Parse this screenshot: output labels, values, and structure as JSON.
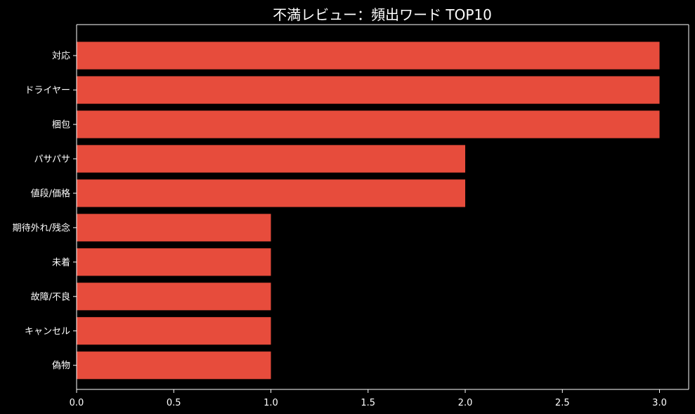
{
  "chart_data": {
    "type": "bar",
    "orientation": "horizontal",
    "title": "不満レビュー：頻出ワード TOP10",
    "xlabel": "",
    "ylabel": "",
    "categories": [
      "対応",
      "ドライヤー",
      "梱包",
      "パサパサ",
      "値段/価格",
      "期待外れ/残念",
      "未着",
      "故障/不良",
      "キャンセル",
      "偽物"
    ],
    "values": [
      3,
      3,
      3,
      2,
      2,
      1,
      1,
      1,
      1,
      1
    ],
    "xlim": [
      0,
      3.15
    ],
    "xticks": [
      "0.0",
      "0.5",
      "1.0",
      "1.5",
      "2.0",
      "2.5",
      "3.0"
    ],
    "grid": false,
    "bar_color": "#e74c3c",
    "background_color": "#000000",
    "text_color": "#ffffff"
  }
}
